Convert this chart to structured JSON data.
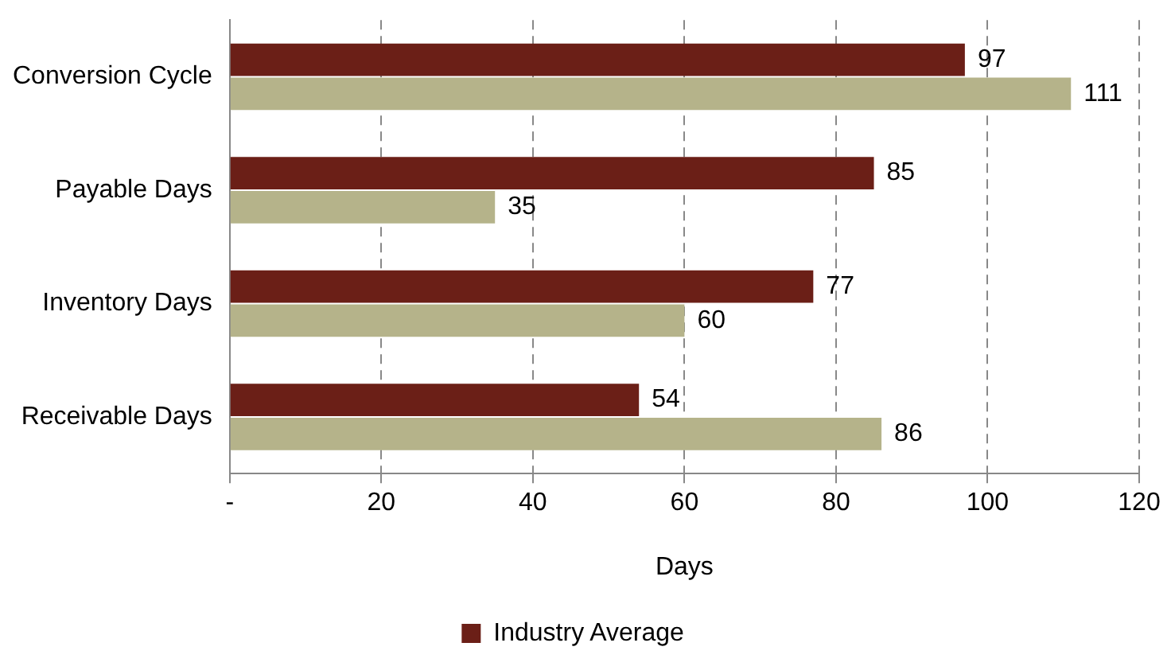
{
  "chart_data": {
    "type": "bar",
    "orientation": "horizontal",
    "xlabel": "Days",
    "categories": [
      "Conversion Cycle",
      "Payable Days",
      "Inventory Days",
      "Receivable Days"
    ],
    "series": [
      {
        "name": "Industry Average",
        "color": "#6b1f17",
        "values": [
          97,
          85,
          77,
          54
        ]
      },
      {
        "color": "#b5b38a",
        "values": [
          111,
          35,
          60,
          86
        ]
      }
    ],
    "xlim": [
      0,
      120
    ],
    "xticks": [
      {
        "value": 0,
        "label": "-"
      },
      20,
      40,
      60,
      80,
      100,
      120
    ],
    "grid": "x",
    "legend": "bottom",
    "data_labels": true
  }
}
